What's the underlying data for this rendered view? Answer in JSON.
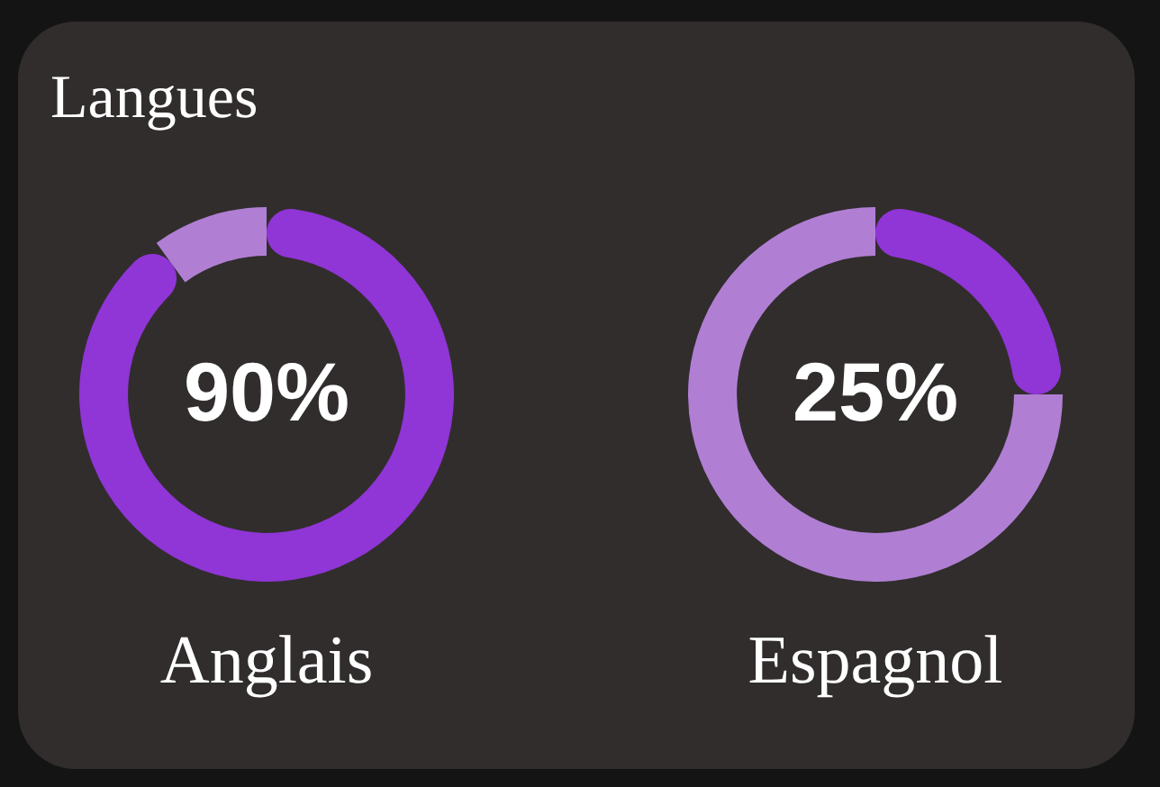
{
  "chart_data": [
    {
      "type": "donut",
      "title": "Langues",
      "categories": [
        null,
        null
      ],
      "values": [
        90,
        10
      ],
      "colors": [
        "#9035d6",
        "#b07fd4"
      ],
      "value_labels": [
        "90%",
        null
      ],
      "xlabel": "Anglais"
    },
    {
      "type": "donut",
      "categories": [
        null,
        null
      ],
      "values": [
        25,
        75
      ],
      "colors": [
        "#9035d6",
        "#b07fd4"
      ],
      "value_labels": [
        "25%",
        null
      ],
      "xlabel": "Espagnol"
    }
  ]
}
